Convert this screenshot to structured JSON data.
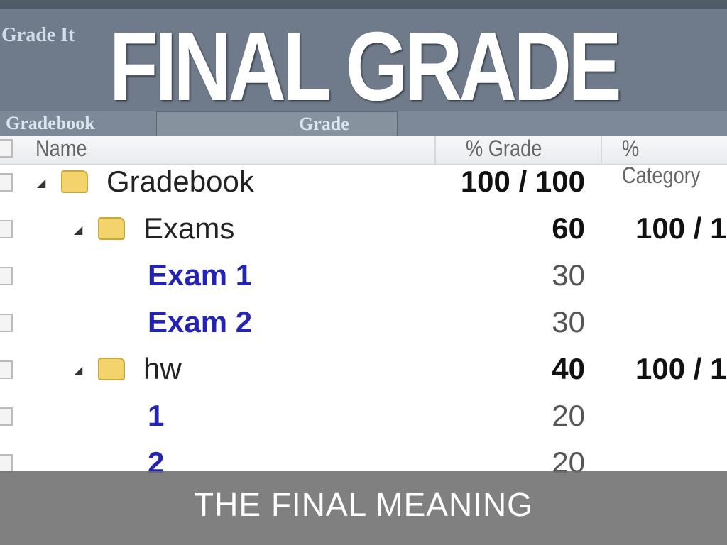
{
  "slide": {
    "title": "FINAL GRADE",
    "subtitle": "THE FINAL MEANING"
  },
  "background_ui": {
    "breadcrumb": "Grade It",
    "tabs": [
      "Gradebook",
      "Grade"
    ],
    "columns": [
      "Name",
      "% Grade",
      "% Category"
    ],
    "rows": [
      {
        "name": "Gradebook",
        "grade": "100 / 100",
        "category": "",
        "type": "folder",
        "level": 0
      },
      {
        "name": "Exams",
        "grade": "60",
        "category": "100 / 1",
        "type": "folder",
        "level": 1
      },
      {
        "name": "Exam 1",
        "grade": "30",
        "category": "",
        "type": "item",
        "level": 2
      },
      {
        "name": "Exam 2",
        "grade": "30",
        "category": "",
        "type": "item",
        "level": 2
      },
      {
        "name": "hw",
        "grade": "40",
        "category": "100 / 1",
        "type": "folder",
        "level": 1
      },
      {
        "name": "1",
        "grade": "20",
        "category": "",
        "type": "item",
        "level": 2
      },
      {
        "name": "2",
        "grade": "20",
        "category": "",
        "type": "item",
        "level": 2
      }
    ]
  },
  "colors": {
    "link": "#2424b4",
    "folder": "#f3d36b",
    "overlay": "#3c4655",
    "band": "#6e6e6e"
  }
}
